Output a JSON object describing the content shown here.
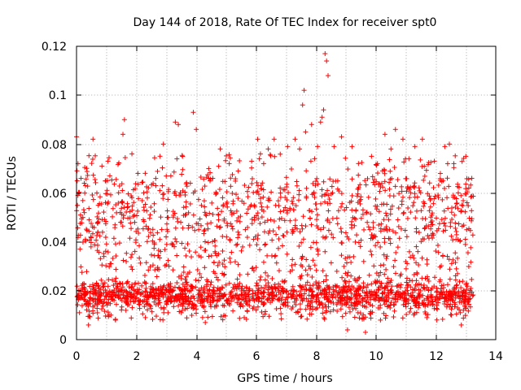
{
  "chart_data": {
    "type": "scatter",
    "title": "Day 144 of 2018, Rate Of TEC Index for receiver spt0",
    "xlabel": "GPS time / hours",
    "ylabel": "ROTI / TECUs",
    "xlim": [
      0,
      14
    ],
    "ylim": [
      0,
      0.12
    ],
    "xticks": [
      0,
      2,
      4,
      6,
      8,
      10,
      12,
      14
    ],
    "xtick_labels": [
      "0",
      "2",
      "4",
      "6",
      "8",
      "10",
      "12",
      "14"
    ],
    "yticks": [
      0,
      0.02,
      0.04,
      0.06,
      0.08,
      0.1,
      0.12
    ],
    "ytick_labels": [
      "0",
      "0.02",
      "0.04",
      "0.06",
      "0.08",
      "0.1",
      "0.12"
    ],
    "grid": true,
    "marker": "+",
    "color": "#ff0000",
    "data_range_hours": [
      0,
      13.25
    ],
    "series": [
      {
        "name": "ROTI",
        "x": [
          0.0,
          0.05,
          0.1,
          0.15,
          0.3,
          0.4,
          0.55,
          0.6,
          0.85,
          1.05,
          1.3,
          1.55,
          1.6,
          1.65,
          1.85,
          2.05,
          2.3,
          2.65,
          2.9,
          3.15,
          3.3,
          3.4,
          3.5,
          3.8,
          3.9,
          4.0,
          4.3,
          4.55,
          4.8,
          5.1,
          5.4,
          5.6,
          5.85,
          6.05,
          6.25,
          6.4,
          6.6,
          6.8,
          7.05,
          7.3,
          7.45,
          7.55,
          7.6,
          7.65,
          7.85,
          7.95,
          8.05,
          8.15,
          8.2,
          8.25,
          8.3,
          8.35,
          8.4,
          8.6,
          8.85,
          9.05,
          9.2,
          9.4,
          9.65,
          9.85,
          10.05,
          10.15,
          10.3,
          10.5,
          10.65,
          10.9,
          11.1,
          11.3,
          11.55,
          11.7,
          11.95,
          12.15,
          12.3,
          12.45,
          12.6,
          12.85,
          13.0,
          13.1,
          13.2
        ],
        "y": [
          0.083,
          0.072,
          0.011,
          0.066,
          0.063,
          0.006,
          0.082,
          0.014,
          0.071,
          0.073,
          0.008,
          0.084,
          0.09,
          0.012,
          0.076,
          0.068,
          0.009,
          0.063,
          0.08,
          0.067,
          0.089,
          0.088,
          0.011,
          0.064,
          0.093,
          0.086,
          0.007,
          0.066,
          0.078,
          0.072,
          0.069,
          0.009,
          0.073,
          0.082,
          0.072,
          0.078,
          0.082,
          0.062,
          0.079,
          0.082,
          0.078,
          0.096,
          0.102,
          0.085,
          0.088,
          0.074,
          0.079,
          0.089,
          0.091,
          0.094,
          0.117,
          0.114,
          0.108,
          0.079,
          0.083,
          0.004,
          0.079,
          0.011,
          0.003,
          0.075,
          0.072,
          0.008,
          0.084,
          0.078,
          0.086,
          0.082,
          0.074,
          0.079,
          0.082,
          0.009,
          0.073,
          0.068,
          0.079,
          0.08,
          0.072,
          0.006,
          0.075,
          0.062,
          0.066
        ]
      }
    ]
  }
}
